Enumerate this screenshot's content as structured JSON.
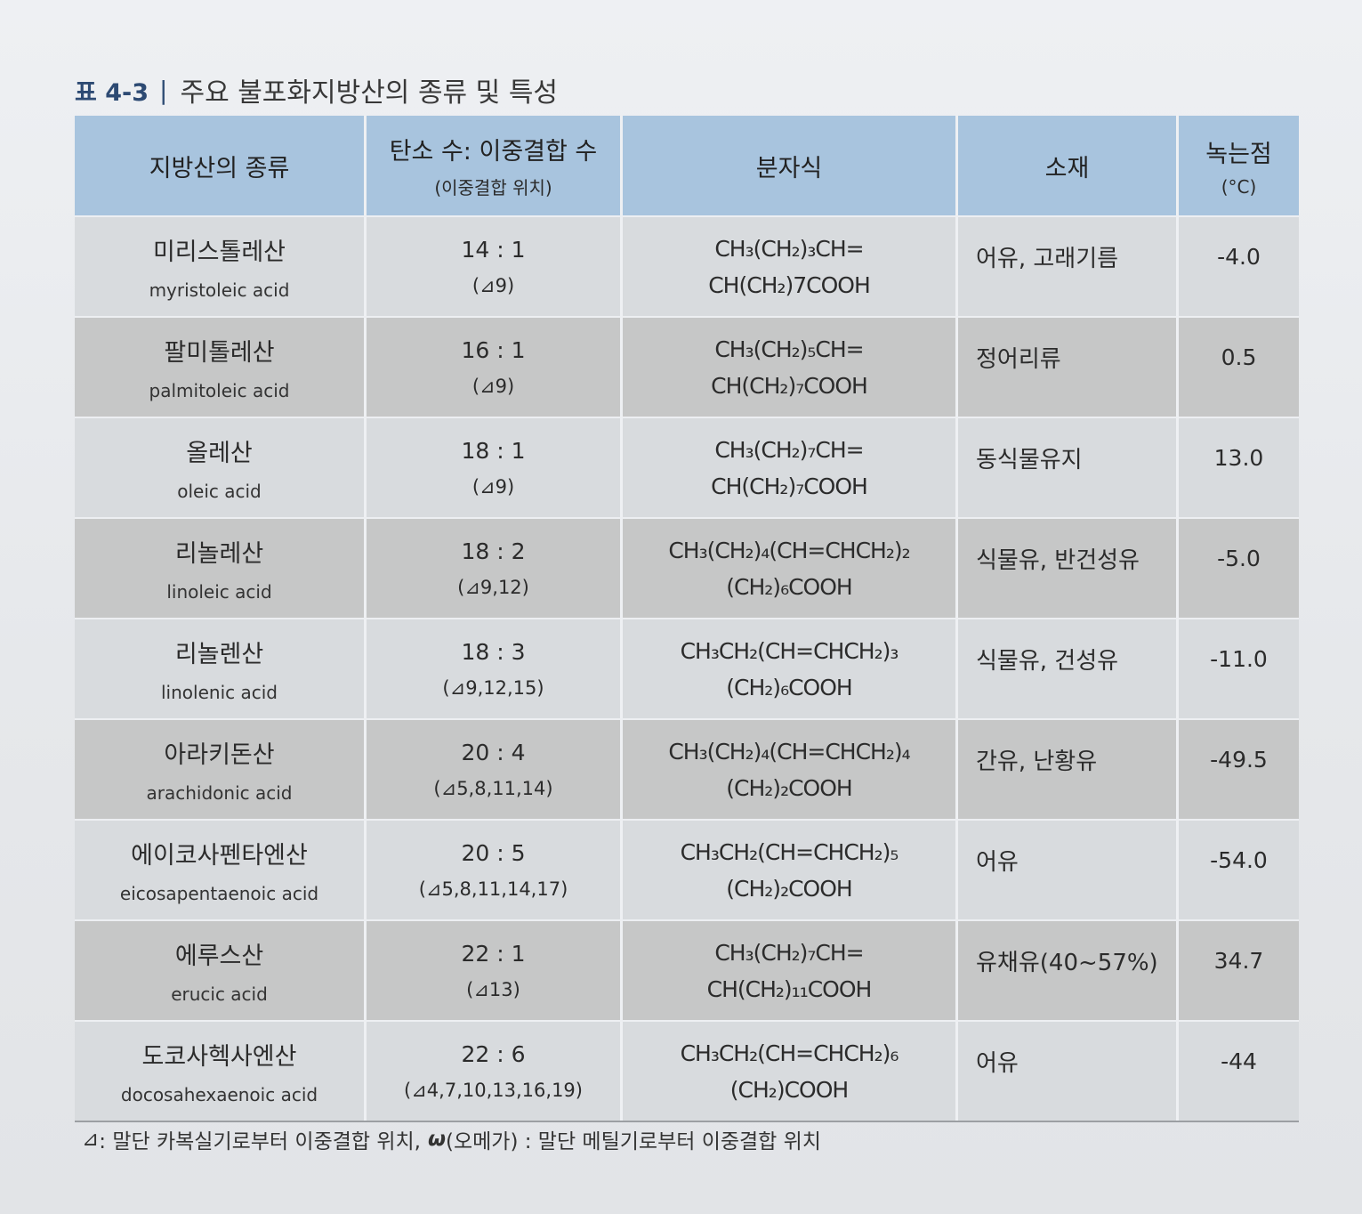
{
  "title": {
    "label": "표 4-3",
    "separator": "|",
    "text": "주요 불포화지방산의 종류 및 특성"
  },
  "colors": {
    "header_bg": "#a8c4de",
    "row_light": "#d8dbde",
    "row_dark": "#c6c7c7",
    "title_accent": "#2d4a73"
  },
  "table": {
    "headers": [
      {
        "line1": "지방산의 종류"
      },
      {
        "line1": "탄소 수: 이중결합 수",
        "line2": "(이중결합 위치)"
      },
      {
        "line1": "분자식"
      },
      {
        "line1": "소재"
      },
      {
        "line1": "녹는점",
        "line2": "(°C)"
      }
    ],
    "rows": [
      {
        "name_ko": "미리스톨레산",
        "name_en": "myristoleic acid",
        "ratio": "14 : 1",
        "positions": "(⊿9)",
        "formula_1": "CH₃(CH₂)₃CH=",
        "formula_2": "CH(CH₂)7COOH",
        "source": "어유, 고래기름",
        "melting_point": "-4.0"
      },
      {
        "name_ko": "팔미톨레산",
        "name_en": "palmitoleic acid",
        "ratio": "16 : 1",
        "positions": "(⊿9)",
        "formula_1": "CH₃(CH₂)₅CH=",
        "formula_2": "CH(CH₂)₇COOH",
        "source": "정어리류",
        "melting_point": "0.5"
      },
      {
        "name_ko": "올레산",
        "name_en": "oleic acid",
        "ratio": "18 : 1",
        "positions": "(⊿9)",
        "formula_1": "CH₃(CH₂)₇CH=",
        "formula_2": "CH(CH₂)₇COOH",
        "source": "동식물유지",
        "melting_point": "13.0"
      },
      {
        "name_ko": "리놀레산",
        "name_en": "linoleic acid",
        "ratio": "18 : 2",
        "positions": "(⊿9,12)",
        "formula_1": "CH₃(CH₂)₄(CH=CHCH₂)₂",
        "formula_2": "(CH₂)₆COOH",
        "source": "식물유, 반건성유",
        "melting_point": "-5.0"
      },
      {
        "name_ko": "리놀렌산",
        "name_en": "linolenic acid",
        "ratio": "18 : 3",
        "positions": "(⊿9,12,15)",
        "formula_1": "CH₃CH₂(CH=CHCH₂)₃",
        "formula_2": "(CH₂)₆COOH",
        "source": "식물유, 건성유",
        "melting_point": "-11.0"
      },
      {
        "name_ko": "아라키돈산",
        "name_en": "arachidonic acid",
        "ratio": "20 : 4",
        "positions": "(⊿5,8,11,14)",
        "formula_1": "CH₃(CH₂)₄(CH=CHCH₂)₄",
        "formula_2": "(CH₂)₂COOH",
        "source": "간유, 난황유",
        "melting_point": "-49.5"
      },
      {
        "name_ko": "에이코사펜타엔산",
        "name_en": "eicosapentaenoic acid",
        "ratio": "20 : 5",
        "positions": "(⊿5,8,11,14,17)",
        "formula_1": "CH₃CH₂(CH=CHCH₂)₅",
        "formula_2": "(CH₂)₂COOH",
        "source": "어유",
        "melting_point": "-54.0"
      },
      {
        "name_ko": "에루스산",
        "name_en": "erucic acid",
        "ratio": "22 : 1",
        "positions": "(⊿13)",
        "formula_1": "CH₃(CH₂)₇CH=",
        "formula_2": "CH(CH₂)₁₁COOH",
        "source": "유채유(40~57%)",
        "melting_point": "34.7"
      },
      {
        "name_ko": "도코사헥사엔산",
        "name_en": "docosahexaenoic acid",
        "ratio": "22 : 6",
        "positions": "(⊿4,7,10,13,16,19)",
        "formula_1": "CH₃CH₂(CH=CHCH₂)₆",
        "formula_2": "(CH₂)COOH",
        "source": "어유",
        "melting_point": "-44"
      }
    ]
  },
  "footnote": {
    "delta_symbol": "⊿",
    "delta_text": " : 말단 카복실기로부터 이중결합 위치,",
    "omega_symbol": "ω",
    "omega_text": " (오메가) : 말단 메틸기로부터 이중결합 위치"
  }
}
